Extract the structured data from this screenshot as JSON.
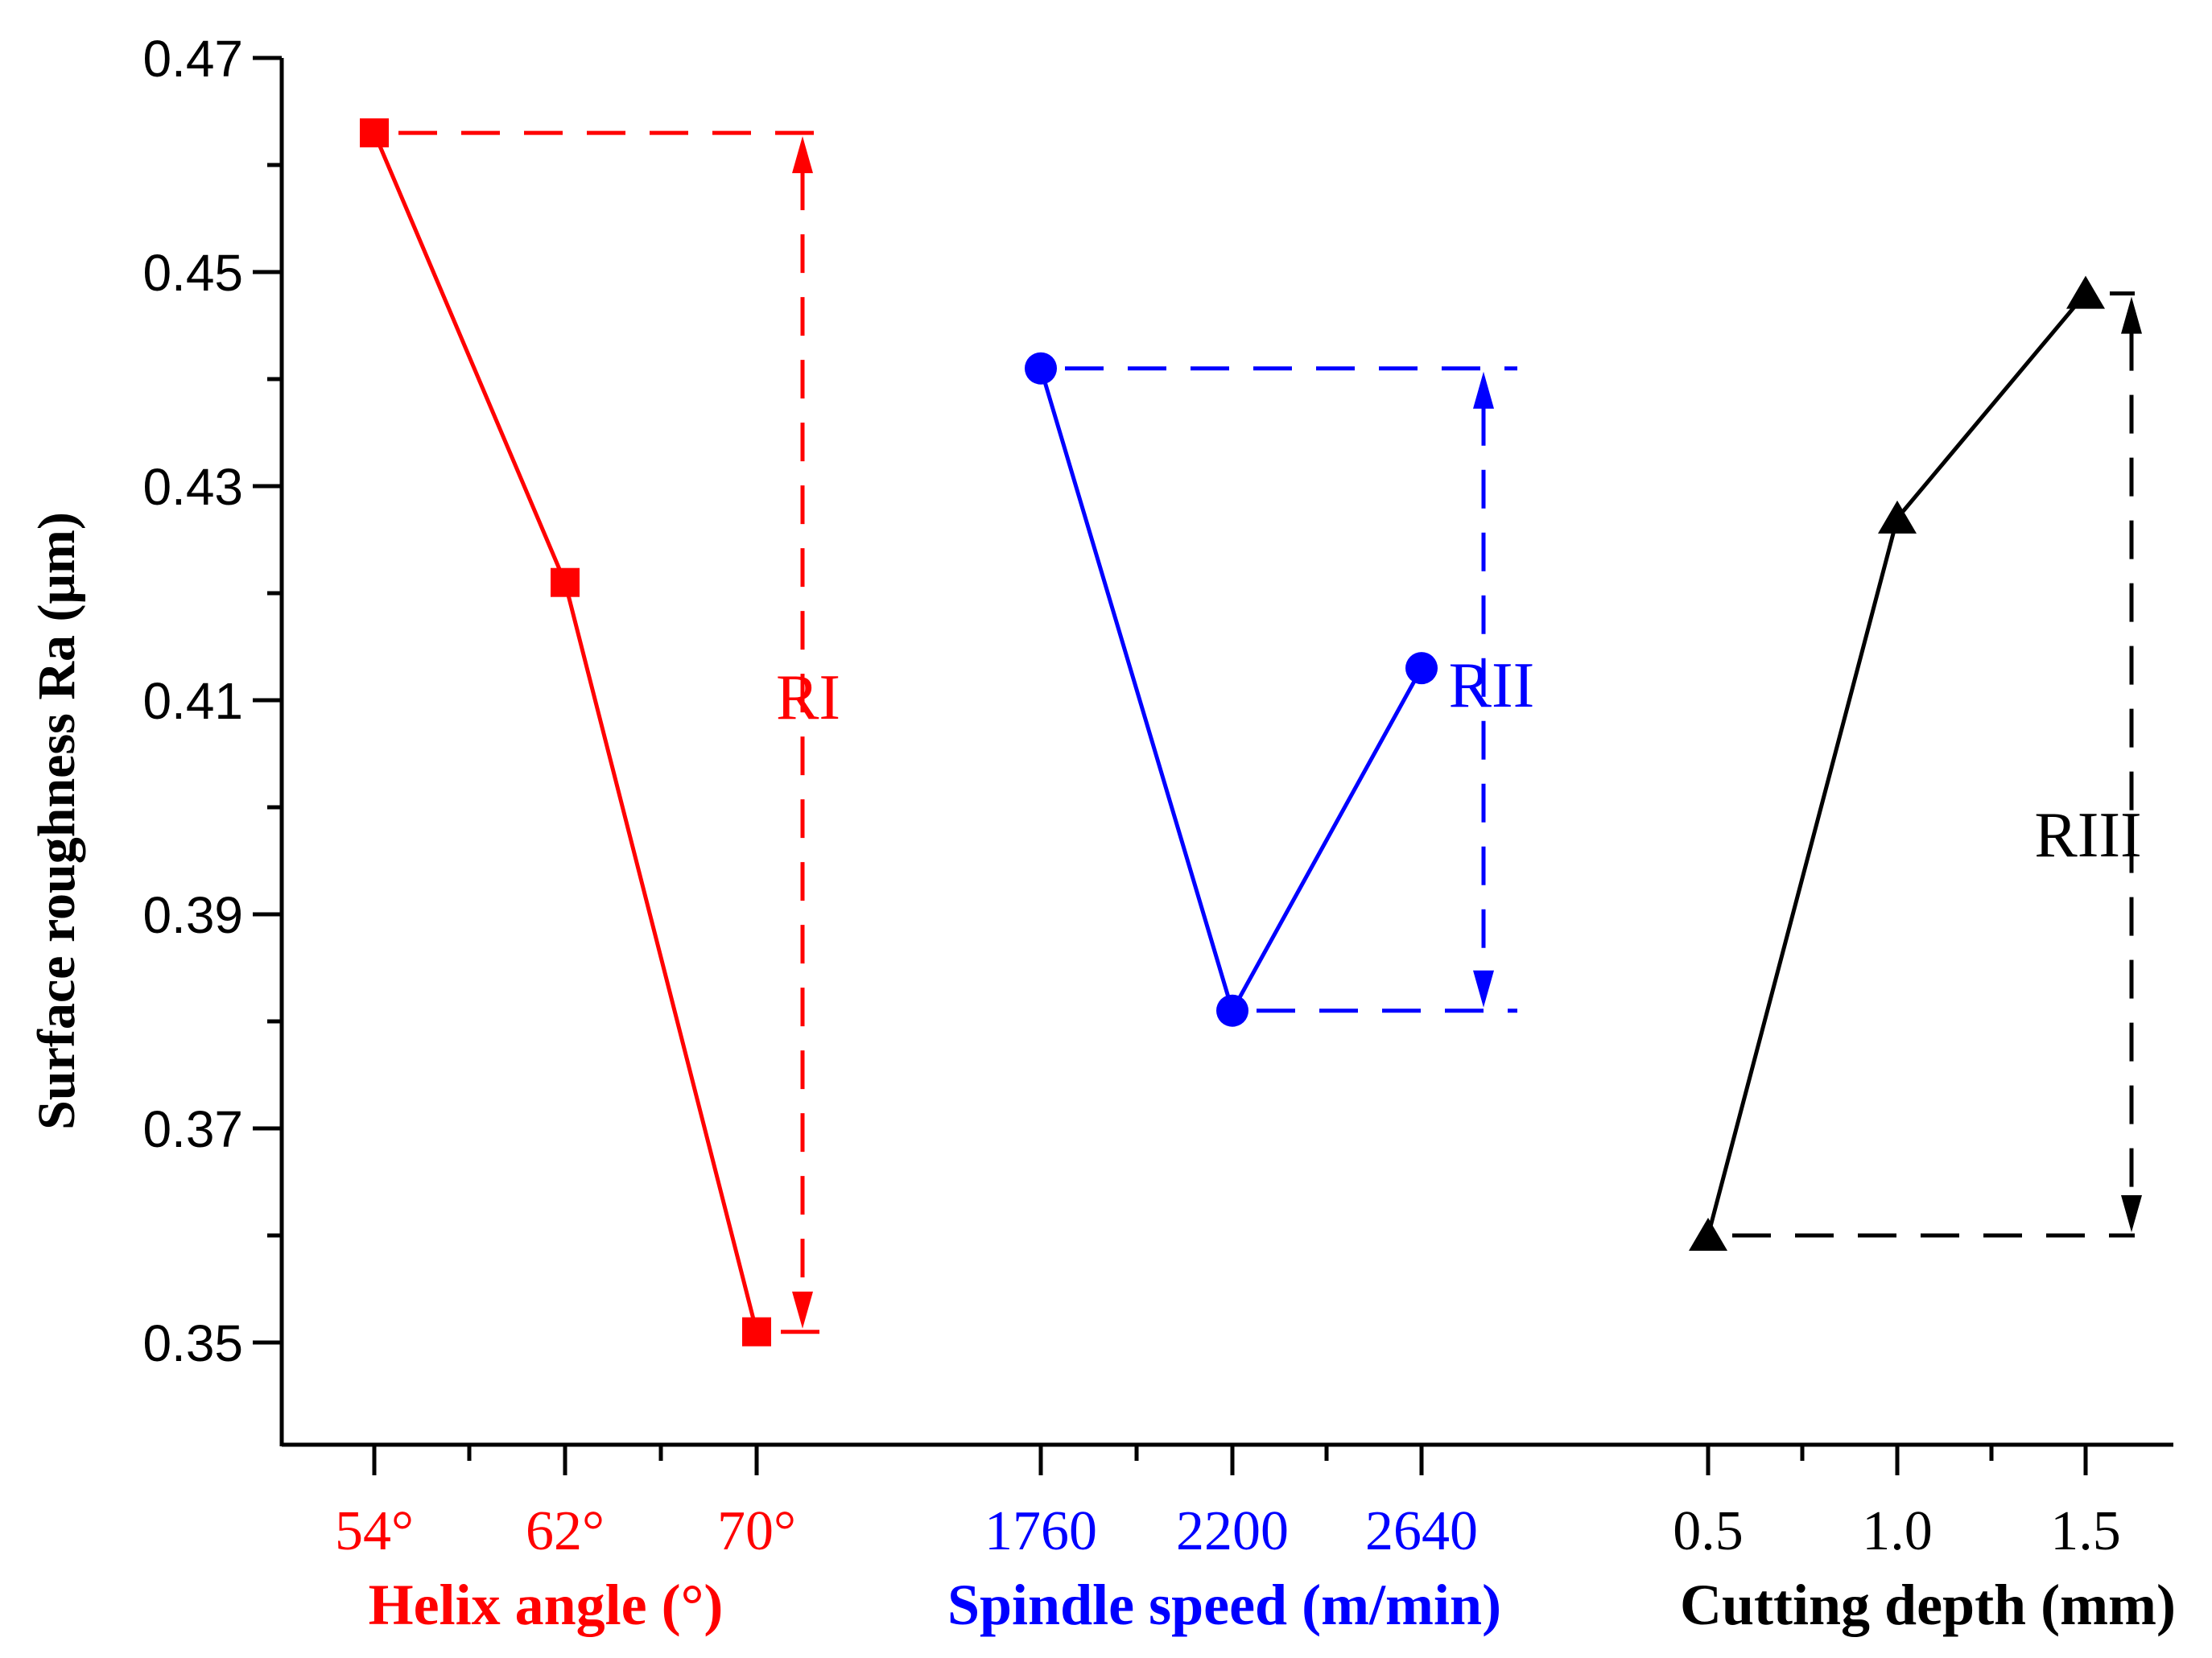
{
  "chart_data": {
    "type": "line",
    "title": "",
    "ylabel": "Surface roughness Ra (μm)",
    "ylim": [
      0.341,
      0.47
    ],
    "yticks": [
      "0.47",
      "0.45",
      "0.43",
      "0.41",
      "0.39",
      "0.37",
      "0.35"
    ],
    "grid": false,
    "groups": [
      {
        "name": "Helix angle (°)",
        "color": "#ff0000",
        "marker": "square",
        "categories": [
          "54°",
          "62°",
          "70°"
        ],
        "values": [
          0.463,
          0.421,
          0.351
        ],
        "range_label": "RI"
      },
      {
        "name": "Spindle speed (m/min)",
        "color": "#0000ff",
        "marker": "circle",
        "categories": [
          "1760",
          "2200",
          "2640"
        ],
        "values": [
          0.441,
          0.381,
          0.413
        ],
        "range_label": "RII"
      },
      {
        "name": "Cutting depth (mm)",
        "color": "#000000",
        "marker": "triangle",
        "categories": [
          "0.5",
          "1.0",
          "1.5"
        ],
        "values": [
          0.36,
          0.427,
          0.448
        ],
        "range_label": "RIII"
      }
    ]
  }
}
